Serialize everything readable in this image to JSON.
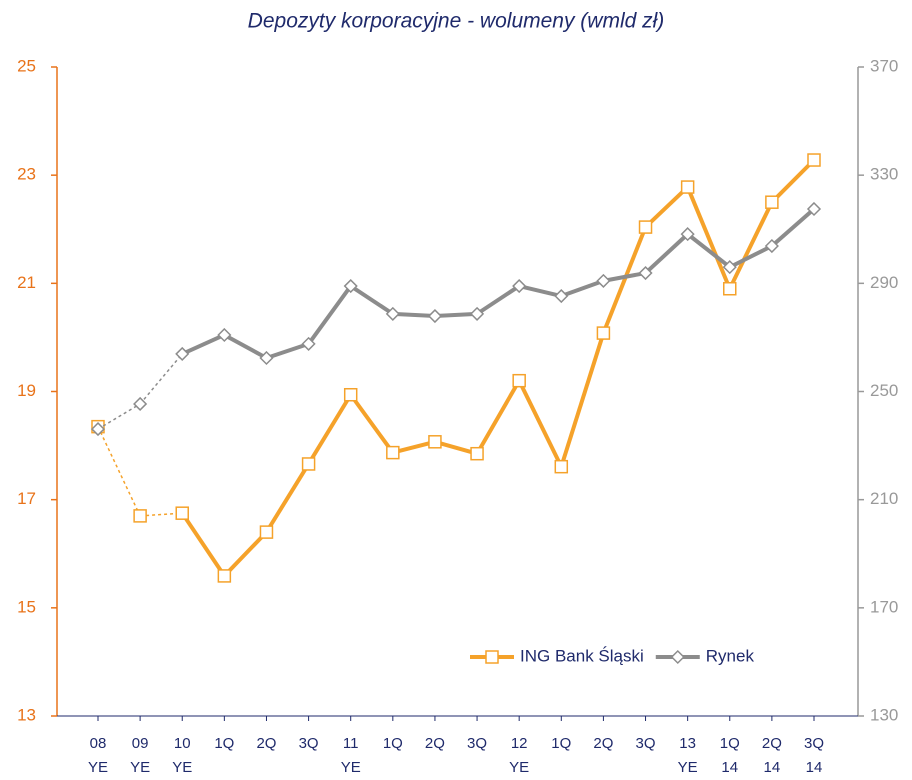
{
  "chart_data": {
    "type": "line",
    "title": "Depozyty korporacyjne - wolumeny (wmld zł)",
    "categories": [
      [
        "08",
        "YE"
      ],
      [
        "09",
        "YE"
      ],
      [
        "10",
        "YE"
      ],
      [
        "1Q"
      ],
      [
        "2Q"
      ],
      [
        "3Q"
      ],
      [
        "11",
        "YE"
      ],
      [
        "1Q"
      ],
      [
        "2Q"
      ],
      [
        "3Q"
      ],
      [
        "12",
        "YE"
      ],
      [
        "1Q"
      ],
      [
        "2Q"
      ],
      [
        "3Q"
      ],
      [
        "13",
        "YE"
      ],
      [
        "1Q",
        "14"
      ],
      [
        "2Q",
        "14"
      ],
      [
        "3Q",
        "14"
      ]
    ],
    "series": [
      {
        "name": "ING Bank Śląski",
        "color": "#f5a22a",
        "marker": "square",
        "dashed_until_index": 2,
        "values": [
          18.35,
          16.7,
          16.75,
          15.59,
          16.4,
          17.66,
          18.94,
          17.87,
          18.07,
          17.85,
          19.2,
          17.61,
          20.08,
          22.04,
          22.78,
          20.9,
          22.5,
          23.28
        ]
      },
      {
        "name": "Rynek",
        "color": "#8c8c8c",
        "marker": "diamond",
        "axis": "y2",
        "dashed_until_index": 2,
        "values": [
          236.1,
          245.4,
          263.9,
          270.9,
          262.4,
          267.6,
          289.0,
          278.7,
          277.9,
          278.7,
          289.0,
          285.3,
          290.9,
          293.8,
          308.2,
          296.0,
          303.8,
          317.5
        ]
      }
    ],
    "ylim": [
      13,
      25
    ],
    "yticks": [
      13,
      15,
      17,
      19,
      21,
      23,
      25
    ],
    "y_axis_color": "#e8731a",
    "y2lim": [
      130,
      370
    ],
    "y2ticks": [
      130,
      170,
      210,
      250,
      290,
      330,
      370
    ],
    "y2_axis_color": "#999999",
    "legend": "lower right"
  }
}
